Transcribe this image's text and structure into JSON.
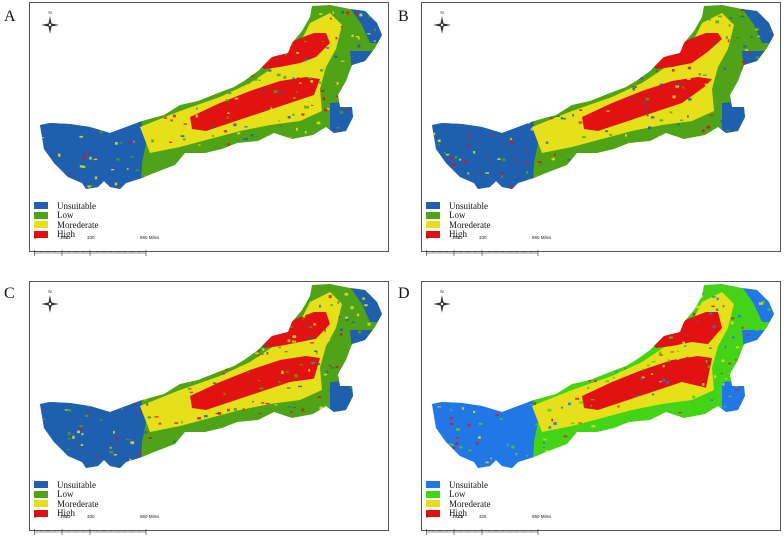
{
  "colors": {
    "unsuitable": "#1f5fb0",
    "unsuitable_d": "#2277e6",
    "low": "#4ea317",
    "low_d": "#44d417",
    "moderate": "#e6e01a",
    "high": "#e21212"
  },
  "legend": {
    "unsuitable": "Unsuitable",
    "low": "Low",
    "moderate": "Morederate",
    "high": "High"
  },
  "compass_label": "N",
  "panels": [
    {
      "letter": "A",
      "scale": [
        "0",
        "165",
        "330",
        "660 Miles"
      ]
    },
    {
      "letter": "B",
      "scale": [
        "0",
        "165",
        "330",
        "660 Miles"
      ]
    },
    {
      "letter": "C",
      "scale": [
        "0",
        "165",
        "330",
        "660 Miles"
      ]
    },
    {
      "letter": "D",
      "scale": [
        "0",
        "162.5",
        "325",
        "650 Miles"
      ]
    }
  ]
}
